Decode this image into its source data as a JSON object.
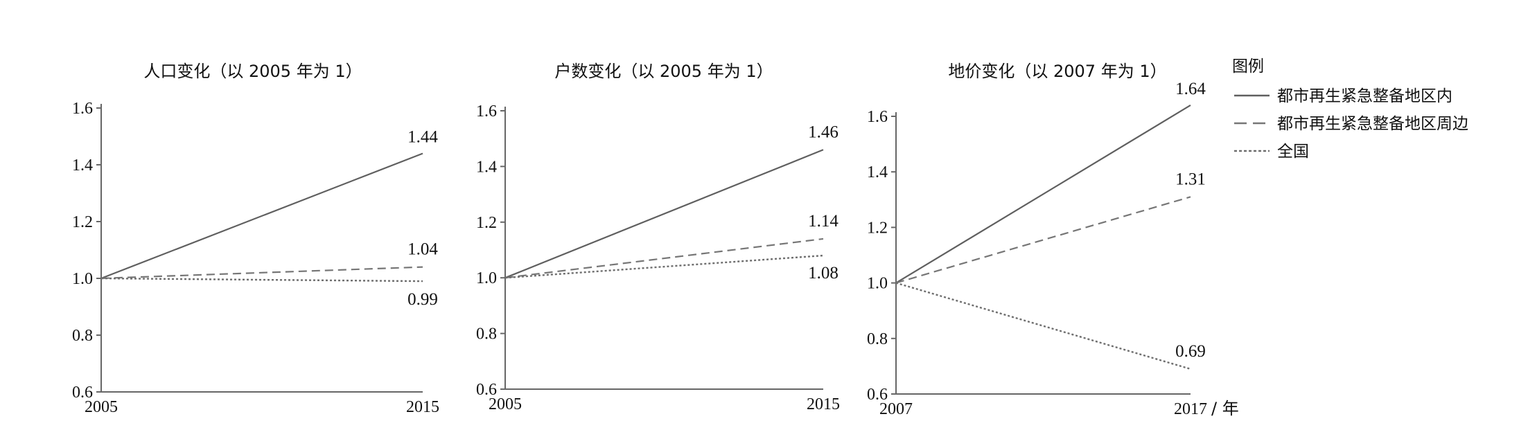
{
  "chart_data": [
    {
      "type": "line",
      "title": "人口变化（以 2005 年为 1）",
      "categories": [
        "2005",
        "2015"
      ],
      "ylim": [
        0.6,
        1.6
      ],
      "yticks": [
        "0.6",
        "0.8",
        "1.0",
        "1.2",
        "1.4",
        "1.6"
      ],
      "series": [
        {
          "name": "都市再生紧急整备地区内",
          "style": "solid",
          "values": [
            1.0,
            1.44
          ],
          "end_label": "1.44"
        },
        {
          "name": "都市再生紧急整备地区周边",
          "style": "dashed",
          "values": [
            1.0,
            1.04
          ],
          "end_label": "1.04"
        },
        {
          "name": "全国",
          "style": "dotted",
          "values": [
            1.0,
            0.99
          ],
          "end_label": "0.99"
        }
      ],
      "x_unit": "",
      "grid": false
    },
    {
      "type": "line",
      "title": "户数变化（以 2005 年为 1）",
      "categories": [
        "2005",
        "2015"
      ],
      "ylim": [
        0.6,
        1.6
      ],
      "yticks": [
        "0.6",
        "0.8",
        "1.0",
        "1.2",
        "1.4",
        "1.6"
      ],
      "series": [
        {
          "name": "都市再生紧急整备地区内",
          "style": "solid",
          "values": [
            1.0,
            1.46
          ],
          "end_label": "1.46"
        },
        {
          "name": "都市再生紧急整备地区周边",
          "style": "dashed",
          "values": [
            1.0,
            1.14
          ],
          "end_label": "1.14"
        },
        {
          "name": "全国",
          "style": "dotted",
          "values": [
            1.0,
            1.08
          ],
          "end_label": "1.08"
        }
      ],
      "x_unit": "",
      "grid": false
    },
    {
      "type": "line",
      "title": "地价变化（以 2007 年为 1）",
      "categories": [
        "2007",
        "2017"
      ],
      "ylim": [
        0.6,
        1.6
      ],
      "yticks": [
        "0.6",
        "0.8",
        "1.0",
        "1.2",
        "1.4",
        "1.6"
      ],
      "series": [
        {
          "name": "都市再生紧急整备地区内",
          "style": "solid",
          "values": [
            1.0,
            1.64
          ],
          "end_label": "1.64"
        },
        {
          "name": "都市再生紧急整备地区周边",
          "style": "dashed",
          "values": [
            1.0,
            1.31
          ],
          "end_label": "1.31"
        },
        {
          "name": "全国",
          "style": "dotted",
          "values": [
            1.0,
            0.69
          ],
          "end_label": "0.69"
        }
      ],
      "x_unit": "/ 年",
      "grid": false
    }
  ],
  "legend": {
    "title": "图例",
    "placement": "right",
    "items": [
      {
        "label": "都市再生紧急整备地区内",
        "style": "solid"
      },
      {
        "label": "都市再生紧急整备地区周边",
        "style": "dashed"
      },
      {
        "label": "全国",
        "style": "dotted"
      }
    ]
  },
  "colors": {
    "axis": "#666666",
    "solid": "#5f5f5f",
    "dashed": "#767676",
    "dotted": "#6e6e6e",
    "text": "#111111"
  }
}
